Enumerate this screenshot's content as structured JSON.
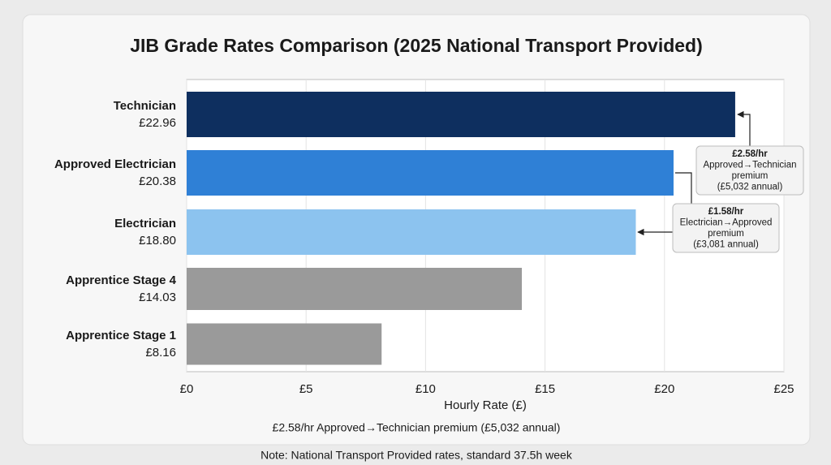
{
  "chart_data": {
    "type": "bar",
    "orientation": "horizontal",
    "title": "JIB Grade Rates Comparison (2025 National Transport Provided)",
    "categories": [
      "Technician",
      "Approved Electrician",
      "Electrician",
      "Apprentice Stage 4",
      "Apprentice Stage 1"
    ],
    "values": [
      22.96,
      20.38,
      18.8,
      14.03,
      8.16
    ],
    "value_labels": [
      "£22.96",
      "£20.38",
      "£18.80",
      "£14.03",
      "£8.16"
    ],
    "colors": [
      "#0e2f5f",
      "#2f80d6",
      "#8cc3ef",
      "#9a9a9a",
      "#9a9a9a"
    ],
    "xlabel": "Hourly Rate (£)",
    "xlim": [
      0,
      25
    ],
    "xticks": [
      {
        "value": 0,
        "label": "£0"
      },
      {
        "value": 5,
        "label": "£5"
      },
      {
        "value": 10,
        "label": "£10"
      },
      {
        "value": 15,
        "label": "£15"
      },
      {
        "value": 20,
        "label": "£20"
      },
      {
        "value": 25,
        "label": "£25"
      }
    ],
    "grid": true,
    "annotations": [
      {
        "lines": [
          "£2.58/hr",
          "Approved→Technician",
          "premium",
          "(£5,032 annual)"
        ]
      },
      {
        "lines": [
          "£1.58/hr",
          "Electrician→Approved",
          "premium",
          "(£3,081 annual)"
        ]
      }
    ],
    "footnote": "£2.58/hr Approved→Technician premium (£5,032 annual)",
    "note": "Note: National Transport Provided rates, standard 37.5h week"
  }
}
